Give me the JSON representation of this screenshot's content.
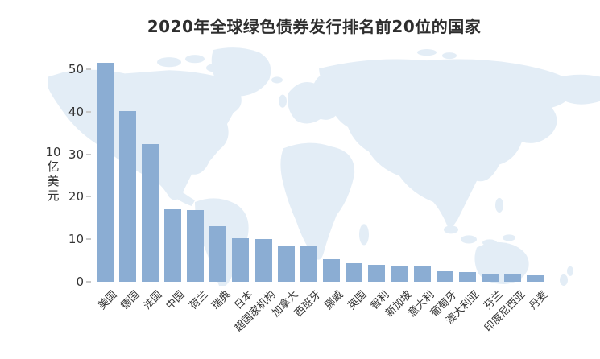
{
  "title": "2020年全球绿色债券发行排名前20位的国家",
  "colors": {
    "bar": "#8badd3",
    "map_land": "#e3edf6",
    "text": "#333333",
    "tick_mark": "#c9c9c9",
    "title_text": "#2e2e2e",
    "background": "#ffffff"
  },
  "y_axis": {
    "unit_top": "10",
    "unit_vertical": "亿美元",
    "ticks": [
      0,
      10,
      20,
      30,
      40,
      50
    ]
  },
  "chart_data": {
    "type": "bar",
    "title": "2020年全球绿色债券发行排名前20位的国家",
    "xlabel": "",
    "ylabel": "10亿美元",
    "ylim": [
      0,
      55
    ],
    "yticks": [
      0,
      10,
      20,
      30,
      40,
      50
    ],
    "grid": false,
    "legend": "none",
    "background": "light world map silhouette",
    "bar_color": "#8badd3",
    "categories": [
      "美国",
      "德国",
      "法国",
      "中国",
      "荷兰",
      "瑞典",
      "日本",
      "超国家机构",
      "加拿大",
      "西班牙",
      "挪威",
      "英国",
      "智利",
      "新加坡",
      "意大利",
      "葡萄牙",
      "澳大利亚",
      "芬兰",
      "印度尼西亚",
      "丹麦"
    ],
    "values": [
      51.5,
      40.2,
      32.3,
      17.1,
      16.9,
      13.0,
      10.3,
      10.1,
      8.6,
      8.5,
      5.3,
      4.3,
      4.0,
      3.8,
      3.6,
      2.5,
      2.2,
      1.9,
      1.8,
      1.6
    ]
  }
}
